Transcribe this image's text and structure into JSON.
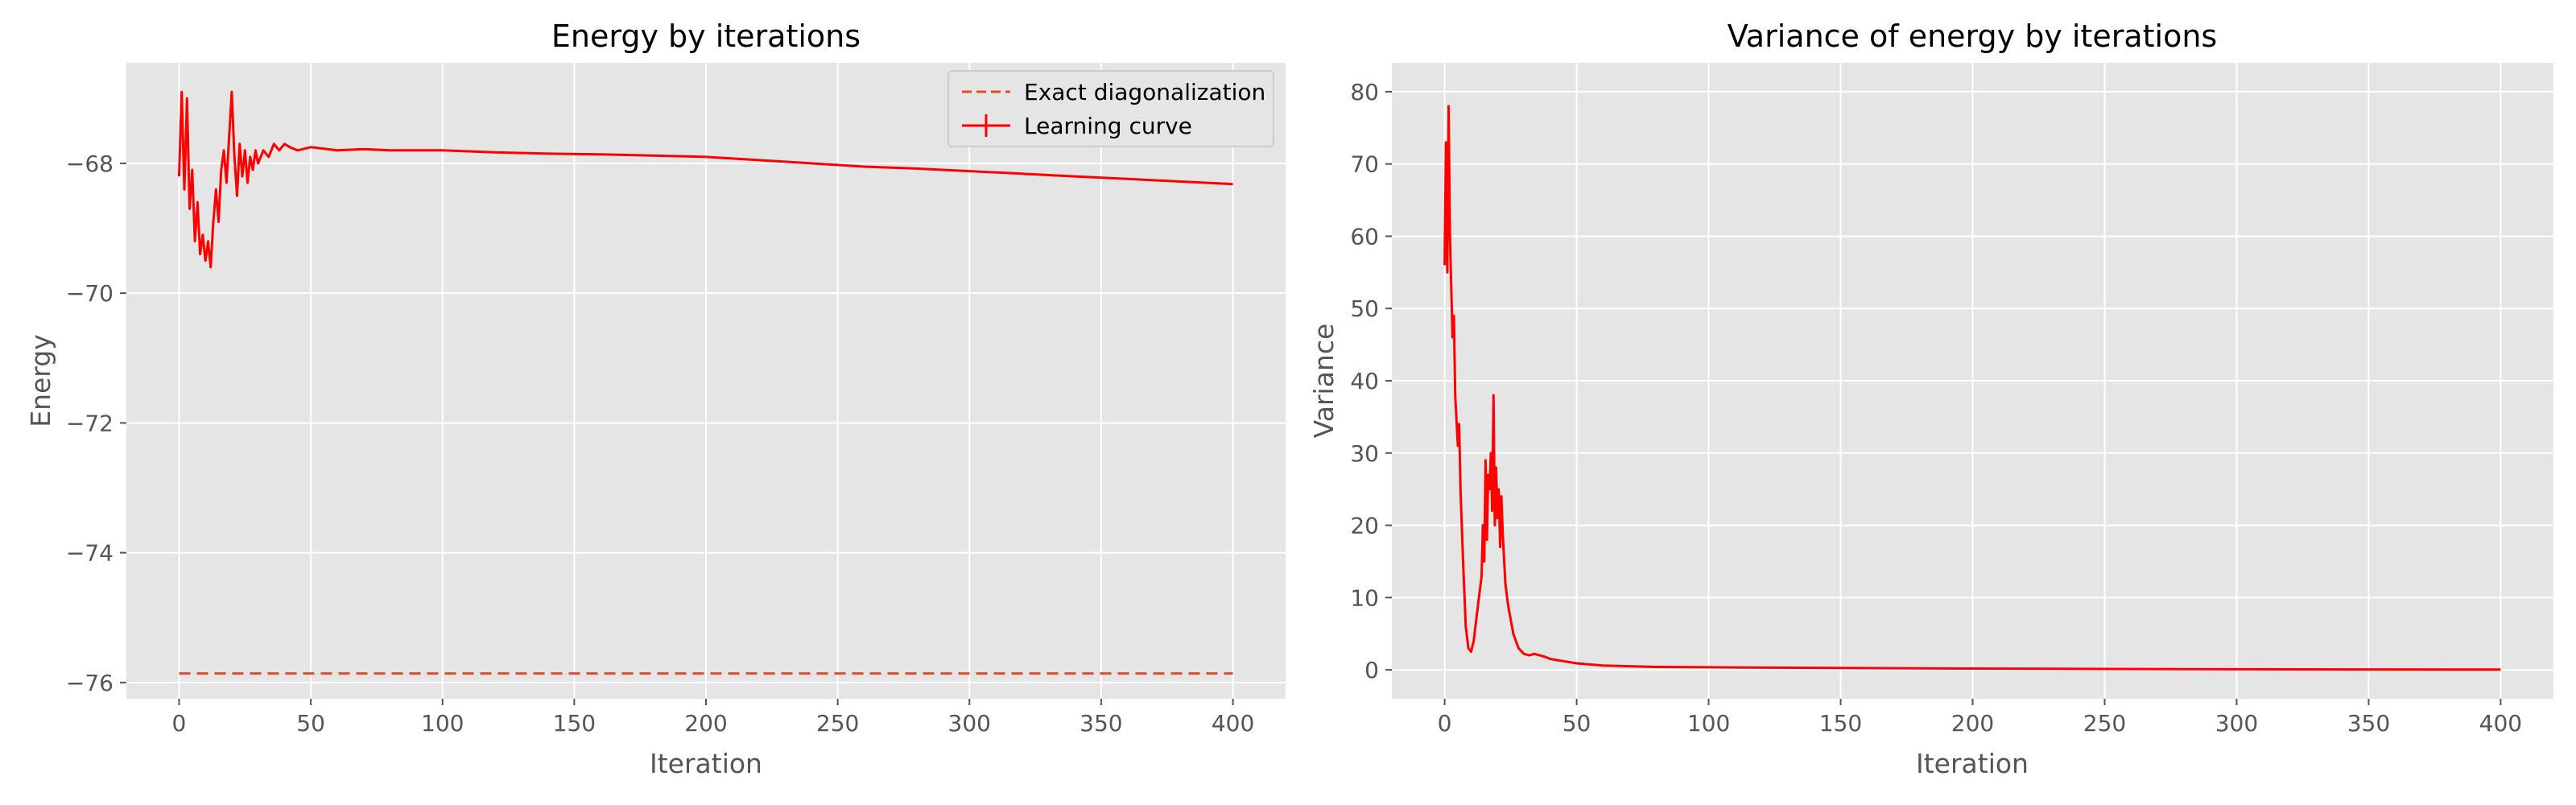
{
  "colors": {
    "panel_bg": "#e5e5e5",
    "grid": "#ffffff",
    "series": "#ff0000",
    "reference": "#e24a33",
    "tick_text": "#555555"
  },
  "chart_data": [
    {
      "type": "line",
      "title": "Energy by iterations",
      "xlabel": "Iteration",
      "ylabel": "Energy",
      "xlim": [
        -20,
        420
      ],
      "ylim": [
        -76.25,
        -66.45
      ],
      "xticks": [
        0,
        50,
        100,
        150,
        200,
        250,
        300,
        350,
        400
      ],
      "yticks": [
        -76,
        -74,
        -72,
        -70,
        -68
      ],
      "xtick_labels": [
        "0",
        "50",
        "100",
        "150",
        "200",
        "250",
        "300",
        "350",
        "400"
      ],
      "ytick_labels": [
        "−76",
        "−74",
        "−72",
        "−70",
        "−68"
      ],
      "grid": true,
      "legend": "top-right",
      "series": [
        {
          "name": "Exact diagonalization",
          "style": "dashed",
          "color": "#e24a33",
          "x": [
            0,
            400
          ],
          "y": [
            -75.86,
            -75.86
          ]
        },
        {
          "name": "Learning curve",
          "style": "solid",
          "color": "#ff0000",
          "x": [
            0,
            1,
            2,
            3,
            4,
            5,
            6,
            7,
            8,
            9,
            10,
            11,
            12,
            13,
            14,
            15,
            16,
            17,
            18,
            19,
            20,
            21,
            22,
            23,
            24,
            25,
            26,
            27,
            28,
            29,
            30,
            32,
            34,
            36,
            38,
            40,
            42,
            45,
            50,
            60,
            70,
            80,
            90,
            100,
            120,
            140,
            160,
            180,
            200,
            220,
            240,
            260,
            280,
            300,
            320,
            340,
            360,
            380,
            400
          ],
          "y": [
            -68.2,
            -66.9,
            -68.4,
            -67.0,
            -68.7,
            -68.1,
            -69.2,
            -68.6,
            -69.4,
            -69.1,
            -69.5,
            -69.2,
            -69.6,
            -68.9,
            -68.4,
            -68.9,
            -68.1,
            -67.8,
            -68.3,
            -67.6,
            -66.9,
            -67.9,
            -68.5,
            -67.7,
            -68.2,
            -67.8,
            -68.3,
            -67.9,
            -68.1,
            -67.8,
            -68.0,
            -67.8,
            -67.9,
            -67.7,
            -67.8,
            -67.7,
            -67.75,
            -67.8,
            -67.75,
            -67.8,
            -67.78,
            -67.8,
            -67.8,
            -67.8,
            -67.83,
            -67.85,
            -67.86,
            -67.88,
            -67.9,
            -67.95,
            -68.0,
            -68.05,
            -68.08,
            -68.12,
            -68.16,
            -68.2,
            -68.24,
            -68.28,
            -68.32
          ]
        }
      ]
    },
    {
      "type": "line",
      "title": "Variance of energy by iterations",
      "xlabel": "Iteration",
      "ylabel": "Variance",
      "xlim": [
        -20,
        420
      ],
      "ylim": [
        -4,
        84
      ],
      "xticks": [
        0,
        50,
        100,
        150,
        200,
        250,
        300,
        350,
        400
      ],
      "yticks": [
        0,
        10,
        20,
        30,
        40,
        50,
        60,
        70,
        80
      ],
      "xtick_labels": [
        "0",
        "50",
        "100",
        "150",
        "200",
        "250",
        "300",
        "350",
        "400"
      ],
      "ytick_labels": [
        "0",
        "10",
        "20",
        "30",
        "40",
        "50",
        "60",
        "70",
        "80"
      ],
      "grid": true,
      "legend": "none",
      "series": [
        {
          "color": "#ff0000",
          "x": [
            0,
            0.5,
            1,
            1.5,
            2,
            3,
            3.5,
            4,
            5,
            5.5,
            6,
            7,
            8,
            9,
            10,
            11,
            12,
            13,
            14,
            14.5,
            15,
            15.5,
            16,
            16.5,
            17,
            17.5,
            18,
            18.5,
            19,
            19.5,
            20,
            20.5,
            21,
            21.5,
            22,
            23,
            24,
            25,
            26,
            27,
            28,
            30,
            32,
            34,
            36,
            38,
            40,
            45,
            50,
            60,
            70,
            80,
            100,
            150,
            200,
            250,
            300,
            350,
            400
          ],
          "y": [
            56,
            73,
            55,
            78,
            60,
            46,
            49,
            38,
            31,
            34,
            25,
            15,
            6,
            3,
            2.5,
            4,
            7,
            10,
            13,
            20,
            15,
            29,
            18,
            27,
            25,
            30,
            22,
            38,
            20,
            28,
            21,
            25,
            17,
            24,
            19,
            12,
            9,
            7,
            5,
            4,
            3,
            2.2,
            2,
            2.2,
            2,
            1.8,
            1.5,
            1.2,
            0.9,
            0.6,
            0.5,
            0.4,
            0.35,
            0.25,
            0.18,
            0.12,
            0.08,
            0.05,
            0.03
          ]
        }
      ]
    }
  ]
}
